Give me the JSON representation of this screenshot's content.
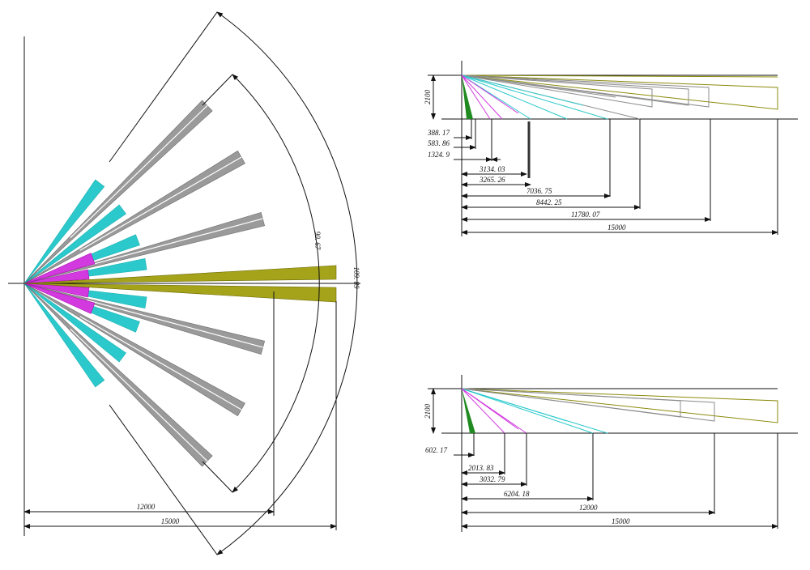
{
  "left_view": {
    "angles": [
      "109. 89",
      "90. 67"
    ],
    "ranges": [
      "12000",
      "15000"
    ]
  },
  "top_right_view": {
    "height": "2100",
    "distances": [
      "388. 17",
      "583. 86",
      "1324. 9",
      "3134. 03",
      "3265. 26",
      "7036. 75",
      "8442. 25",
      "11780. 07",
      "15000"
    ]
  },
  "bottom_right_view": {
    "height": "2100",
    "distances": [
      "602. 17",
      "2013. 83",
      "3032. 79",
      "6204. 18",
      "12000",
      "15000"
    ]
  }
}
